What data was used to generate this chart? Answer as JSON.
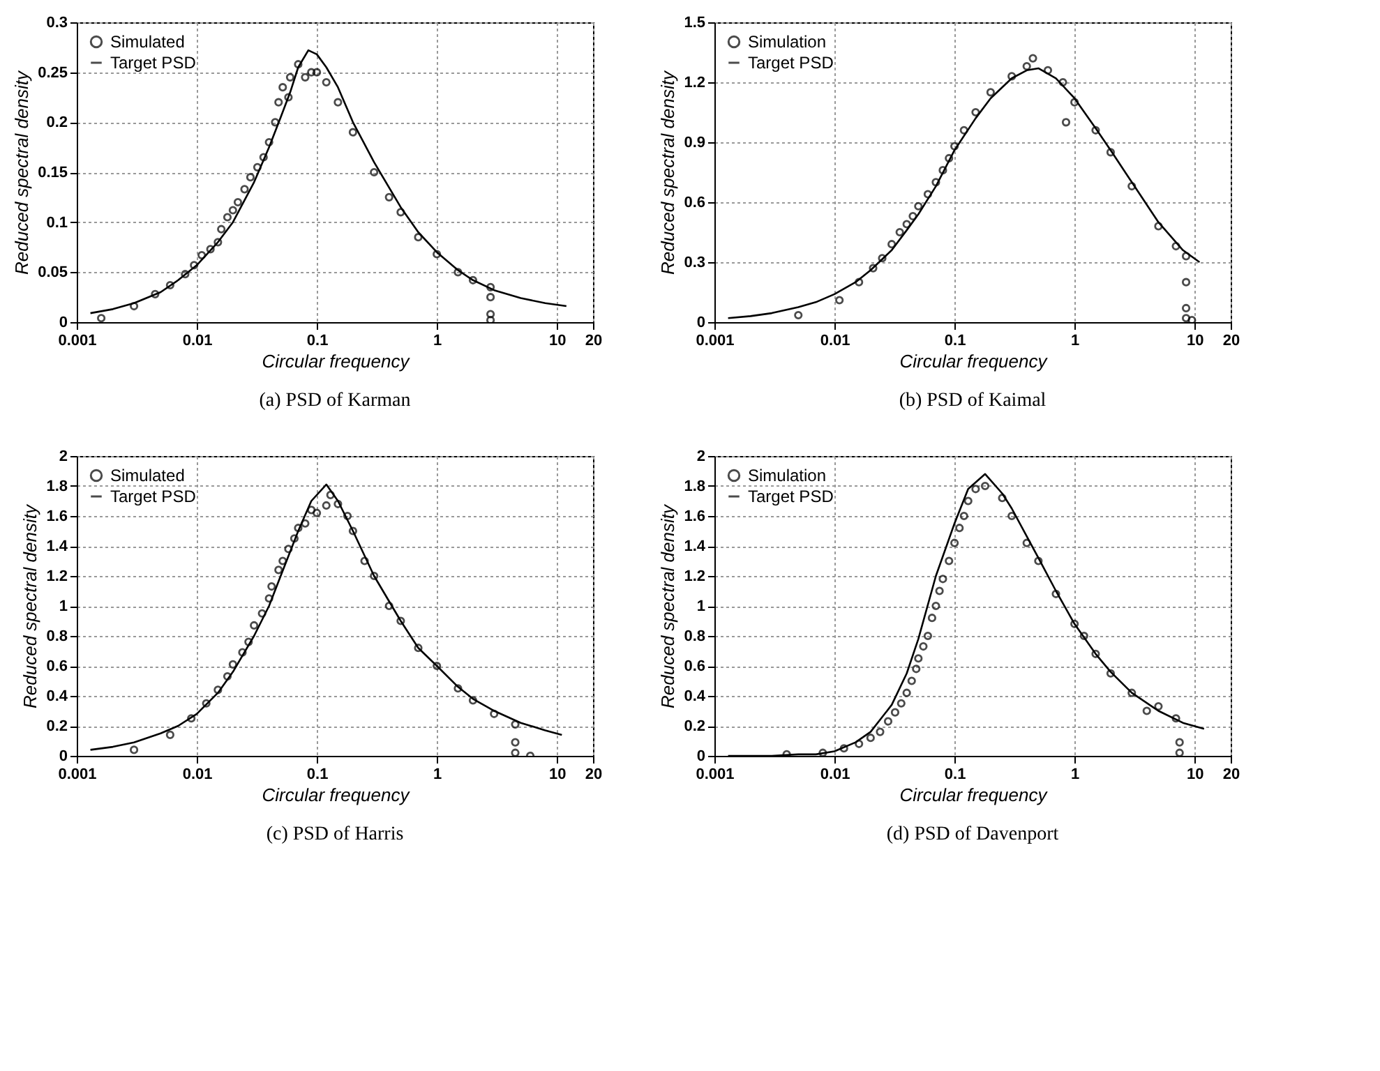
{
  "chart_data": [
    {
      "type": "scatter",
      "title": "(a) PSD of Karman",
      "xlabel": "Circular frequency",
      "ylabel": "Reduced spectral density",
      "xlim": [
        0.001,
        20
      ],
      "xticks": [
        0.001,
        0.01,
        0.1,
        1,
        10,
        20
      ],
      "ylim": [
        0,
        0.3
      ],
      "yticks": [
        0,
        0.05,
        0.1,
        0.15,
        0.2,
        0.25,
        0.3
      ],
      "log": "x",
      "grid": true,
      "legend": "top left",
      "line_style": "solid",
      "series": [
        {
          "name": "Simulated",
          "marker": "circle",
          "color": "#000000",
          "x": [
            0.0016,
            0.003,
            0.0045,
            0.006,
            0.008,
            0.0095,
            0.011,
            0.013,
            0.015,
            0.016,
            0.018,
            0.02,
            0.022,
            0.025,
            0.028,
            0.032,
            0.036,
            0.04,
            0.045,
            0.048,
            0.052,
            0.058,
            0.06,
            0.07,
            0.08,
            0.09,
            0.1,
            0.12,
            0.15,
            0.2,
            0.3,
            0.4,
            0.5,
            0.7,
            1,
            1.5,
            2,
            2.8,
            2.8,
            2.8,
            2.8
          ],
          "values": [
            0.004,
            0.016,
            0.028,
            0.037,
            0.048,
            0.057,
            0.067,
            0.073,
            0.08,
            0.093,
            0.105,
            0.112,
            0.12,
            0.133,
            0.145,
            0.155,
            0.165,
            0.18,
            0.2,
            0.22,
            0.235,
            0.225,
            0.245,
            0.258,
            0.245,
            0.25,
            0.25,
            0.24,
            0.22,
            0.19,
            0.15,
            0.125,
            0.11,
            0.085,
            0.068,
            0.05,
            0.042,
            0.035,
            0.025,
            0.008,
            0.002
          ]
        },
        {
          "name": "Target PSD",
          "type": "line",
          "color": "#000000",
          "x": [
            0.0013,
            0.002,
            0.003,
            0.005,
            0.007,
            0.01,
            0.015,
            0.02,
            0.03,
            0.04,
            0.05,
            0.06,
            0.07,
            0.085,
            0.1,
            0.12,
            0.15,
            0.2,
            0.3,
            0.5,
            0.7,
            1,
            1.5,
            2,
            3,
            5,
            8,
            12
          ],
          "values": [
            0.009,
            0.013,
            0.019,
            0.03,
            0.042,
            0.057,
            0.08,
            0.1,
            0.14,
            0.175,
            0.205,
            0.23,
            0.255,
            0.272,
            0.268,
            0.255,
            0.235,
            0.2,
            0.16,
            0.115,
            0.09,
            0.07,
            0.052,
            0.042,
            0.032,
            0.024,
            0.019,
            0.016
          ]
        }
      ]
    },
    {
      "type": "scatter",
      "title": "(b) PSD of Kaimal",
      "xlabel": "Circular frequency",
      "ylabel": "Reduced spectral density",
      "xlim": [
        0.001,
        20
      ],
      "xticks": [
        0.001,
        0.01,
        0.1,
        1,
        10,
        20
      ],
      "ylim": [
        0,
        1.5
      ],
      "yticks": [
        0,
        0.3,
        0.6,
        0.9,
        1.2,
        1.5
      ],
      "log": "x",
      "grid": true,
      "legend": "top left",
      "line_style": "solid",
      "series": [
        {
          "name": "Simulation",
          "marker": "circle",
          "color": "#000000",
          "x": [
            0.005,
            0.011,
            0.016,
            0.021,
            0.025,
            0.03,
            0.035,
            0.04,
            0.045,
            0.05,
            0.06,
            0.07,
            0.08,
            0.09,
            0.1,
            0.12,
            0.15,
            0.2,
            0.3,
            0.4,
            0.45,
            0.6,
            0.8,
            0.85,
            1,
            1.5,
            2,
            3,
            5,
            7,
            8.5,
            8.5,
            8.5,
            8.5,
            9.5
          ],
          "values": [
            0.035,
            0.11,
            0.2,
            0.27,
            0.32,
            0.39,
            0.45,
            0.49,
            0.53,
            0.58,
            0.64,
            0.7,
            0.76,
            0.82,
            0.88,
            0.96,
            1.05,
            1.15,
            1.23,
            1.28,
            1.32,
            1.26,
            1.2,
            1.0,
            1.1,
            0.96,
            0.85,
            0.68,
            0.48,
            0.38,
            0.33,
            0.2,
            0.07,
            0.02,
            0.01
          ]
        },
        {
          "name": "Target PSD",
          "type": "line",
          "color": "#000000",
          "x": [
            0.0013,
            0.002,
            0.003,
            0.005,
            0.007,
            0.01,
            0.015,
            0.02,
            0.03,
            0.04,
            0.05,
            0.07,
            0.1,
            0.15,
            0.2,
            0.3,
            0.4,
            0.5,
            0.7,
            1,
            1.5,
            2,
            3,
            5,
            8,
            11
          ],
          "values": [
            0.02,
            0.03,
            0.045,
            0.075,
            0.1,
            0.14,
            0.2,
            0.26,
            0.36,
            0.46,
            0.54,
            0.68,
            0.86,
            1.02,
            1.12,
            1.22,
            1.26,
            1.27,
            1.22,
            1.12,
            0.97,
            0.86,
            0.7,
            0.5,
            0.36,
            0.3
          ]
        }
      ]
    },
    {
      "type": "scatter",
      "title": "(c) PSD of Harris",
      "xlabel": "Circular frequency",
      "ylabel": "Reduced spectral density",
      "xlim": [
        0.001,
        20
      ],
      "xticks": [
        0.001,
        0.01,
        0.1,
        1,
        10,
        20
      ],
      "ylim": [
        0,
        2
      ],
      "yticks": [
        0,
        0.2,
        0.4,
        0.6,
        0.8,
        1,
        1.2,
        1.4,
        1.6,
        1.8,
        2
      ],
      "log": "x",
      "grid": true,
      "legend": "top left",
      "line_style": "solid",
      "series": [
        {
          "name": "Simulated",
          "marker": "circle",
          "color": "#000000",
          "x": [
            0.003,
            0.006,
            0.009,
            0.012,
            0.015,
            0.018,
            0.02,
            0.024,
            0.027,
            0.03,
            0.035,
            0.04,
            0.042,
            0.048,
            0.052,
            0.058,
            0.065,
            0.07,
            0.08,
            0.09,
            0.1,
            0.12,
            0.13,
            0.15,
            0.18,
            0.2,
            0.25,
            0.3,
            0.4,
            0.5,
            0.7,
            1,
            1.5,
            2,
            3,
            4.5,
            4.5,
            4.5,
            6
          ],
          "values": [
            0.04,
            0.14,
            0.25,
            0.35,
            0.44,
            0.53,
            0.61,
            0.69,
            0.76,
            0.87,
            0.95,
            1.05,
            1.13,
            1.24,
            1.3,
            1.38,
            1.45,
            1.52,
            1.55,
            1.64,
            1.62,
            1.67,
            1.74,
            1.68,
            1.6,
            1.5,
            1.3,
            1.2,
            1.0,
            0.9,
            0.72,
            0.6,
            0.45,
            0.37,
            0.28,
            0.21,
            0.09,
            0.02,
            0.0
          ]
        },
        {
          "name": "Target PSD",
          "type": "line",
          "color": "#000000",
          "x": [
            0.0013,
            0.002,
            0.003,
            0.005,
            0.007,
            0.01,
            0.015,
            0.02,
            0.03,
            0.04,
            0.05,
            0.07,
            0.09,
            0.12,
            0.15,
            0.2,
            0.3,
            0.5,
            0.7,
            1,
            1.5,
            2,
            3,
            5,
            8,
            11
          ],
          "values": [
            0.04,
            0.06,
            0.09,
            0.15,
            0.2,
            0.28,
            0.42,
            0.56,
            0.8,
            1.0,
            1.2,
            1.5,
            1.7,
            1.81,
            1.7,
            1.5,
            1.2,
            0.9,
            0.72,
            0.6,
            0.46,
            0.38,
            0.3,
            0.22,
            0.17,
            0.14
          ]
        }
      ]
    },
    {
      "type": "scatter",
      "title": "(d) PSD of Davenport",
      "xlabel": "Circular frequency",
      "ylabel": "Reduced spectral density",
      "xlim": [
        0.001,
        20
      ],
      "xticks": [
        0.001,
        0.01,
        0.1,
        1,
        10,
        20
      ],
      "ylim": [
        0,
        2
      ],
      "yticks": [
        0,
        0.2,
        0.4,
        0.6,
        0.8,
        1,
        1.2,
        1.4,
        1.6,
        1.8,
        2
      ],
      "log": "x",
      "grid": true,
      "legend": "top left",
      "line_style": "solid",
      "series": [
        {
          "name": "Simulation",
          "marker": "circle",
          "color": "#000000",
          "x": [
            0.004,
            0.008,
            0.012,
            0.016,
            0.02,
            0.024,
            0.028,
            0.032,
            0.036,
            0.04,
            0.044,
            0.048,
            0.05,
            0.055,
            0.06,
            0.065,
            0.07,
            0.075,
            0.08,
            0.09,
            0.1,
            0.11,
            0.12,
            0.13,
            0.15,
            0.18,
            0.25,
            0.3,
            0.4,
            0.5,
            0.7,
            1,
            1.2,
            1.5,
            2,
            3,
            4,
            5,
            7,
            7.5,
            7.5
          ],
          "values": [
            0.01,
            0.02,
            0.05,
            0.08,
            0.12,
            0.16,
            0.23,
            0.29,
            0.35,
            0.42,
            0.5,
            0.58,
            0.65,
            0.73,
            0.8,
            0.92,
            1.0,
            1.1,
            1.18,
            1.3,
            1.42,
            1.52,
            1.6,
            1.7,
            1.78,
            1.8,
            1.72,
            1.6,
            1.42,
            1.3,
            1.08,
            0.88,
            0.8,
            0.68,
            0.55,
            0.42,
            0.3,
            0.33,
            0.25,
            0.09,
            0.02
          ]
        },
        {
          "name": "Target PSD",
          "type": "line",
          "color": "#000000",
          "x": [
            0.0013,
            0.003,
            0.005,
            0.007,
            0.01,
            0.015,
            0.02,
            0.03,
            0.04,
            0.05,
            0.07,
            0.1,
            0.13,
            0.18,
            0.25,
            0.3,
            0.5,
            0.7,
            1,
            1.5,
            2,
            3,
            5,
            8,
            12
          ],
          "values": [
            0.0,
            0.0,
            0.01,
            0.01,
            0.03,
            0.09,
            0.16,
            0.34,
            0.55,
            0.78,
            1.2,
            1.55,
            1.78,
            1.88,
            1.75,
            1.65,
            1.32,
            1.1,
            0.88,
            0.68,
            0.56,
            0.42,
            0.3,
            0.22,
            0.18
          ]
        }
      ]
    }
  ]
}
